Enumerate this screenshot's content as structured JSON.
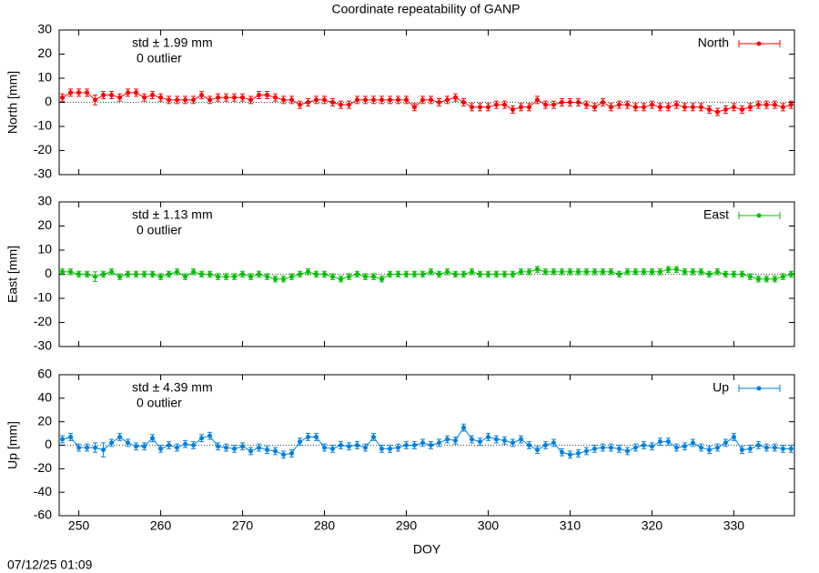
{
  "title": "Coordinate repeatability of GANP",
  "timestamp": "07/12/25 01:09",
  "chart_data": [
    {
      "type": "line",
      "ylabel": "North [mm]",
      "annotations": [
        "std ± 1.99 mm",
        "0 outlier"
      ],
      "xlim": [
        247.6,
        337.4
      ],
      "ylim": [
        -30,
        30
      ],
      "yticks": [
        -30,
        -20,
        -10,
        0,
        10,
        20,
        30
      ],
      "x": [
        248,
        249,
        250,
        251,
        252,
        253,
        254,
        255,
        256,
        257,
        258,
        259,
        260,
        261,
        262,
        263,
        264,
        265,
        266,
        267,
        268,
        269,
        270,
        271,
        272,
        273,
        274,
        275,
        276,
        277,
        278,
        279,
        280,
        281,
        282,
        283,
        284,
        285,
        286,
        287,
        288,
        289,
        290,
        291,
        292,
        293,
        294,
        295,
        296,
        297,
        298,
        299,
        300,
        301,
        302,
        303,
        304,
        305,
        306,
        307,
        308,
        309,
        310,
        311,
        312,
        313,
        314,
        315,
        316,
        317,
        318,
        319,
        320,
        321,
        322,
        323,
        324,
        325,
        326,
        327,
        328,
        329,
        330,
        331,
        332,
        333,
        334,
        335,
        336,
        337
      ],
      "series": [
        {
          "name": "North",
          "color": "#ff0000",
          "values": [
            2,
            4,
            4,
            4,
            1,
            3,
            3,
            2,
            4,
            4,
            2,
            3,
            2,
            1,
            1,
            1,
            1,
            3,
            1,
            2,
            2,
            2,
            2,
            1,
            3,
            3,
            2,
            1,
            1,
            -1,
            0,
            1,
            1,
            0,
            -1,
            -1,
            1,
            1,
            1,
            1,
            1,
            1,
            1,
            -2,
            1,
            1,
            0,
            1,
            2,
            0,
            -2,
            -2,
            -2,
            -1,
            -1,
            -3,
            -2,
            -2,
            1,
            -1,
            -1,
            0,
            0,
            0,
            -1,
            -2,
            0,
            -2,
            -1,
            -1,
            -2,
            -2,
            -1,
            -2,
            -2,
            -1,
            -2,
            -2,
            -2,
            -3,
            -4,
            -3,
            -2,
            -3,
            -2,
            -1,
            -1,
            -1,
            -2,
            -1
          ],
          "errors": [
            1.5,
            1.5,
            1.5,
            1.5,
            2,
            1.5,
            1.5,
            1.5,
            1.5,
            1.5,
            1.5,
            1.5,
            1.5,
            1.5,
            1.5,
            1.5,
            1.5,
            1.5,
            1.5,
            1.5,
            1.5,
            1.5,
            1.5,
            1.5,
            1.5,
            1.5,
            1.5,
            1.5,
            1.5,
            1.5,
            1.5,
            1.5,
            1.5,
            1.5,
            1.5,
            1.5,
            1.5,
            1.5,
            1.5,
            1.5,
            1.5,
            1.5,
            1.5,
            1.5,
            1.5,
            1.5,
            1.5,
            1.5,
            1.5,
            1.5,
            1.5,
            1.5,
            1.5,
            1.5,
            1.5,
            1.5,
            1.5,
            1.5,
            1.5,
            1.5,
            1.5,
            1.5,
            1.5,
            1.5,
            1.5,
            1.5,
            1.5,
            1.5,
            1.5,
            1.5,
            1.5,
            1.5,
            1.5,
            1.5,
            1.5,
            1.5,
            1.5,
            1.5,
            1.5,
            1.5,
            1.5,
            1.5,
            1.5,
            1.5,
            1.5,
            1.5,
            1.5,
            1.5,
            1.5,
            1.5
          ]
        }
      ]
    },
    {
      "type": "line",
      "ylabel": "East [mm]",
      "annotations": [
        "std ± 1.13 mm",
        "0 outlier"
      ],
      "xlim": [
        247.6,
        337.4
      ],
      "ylim": [
        -30,
        30
      ],
      "yticks": [
        -30,
        -20,
        -10,
        0,
        10,
        20,
        30
      ],
      "x": [
        248,
        249,
        250,
        251,
        252,
        253,
        254,
        255,
        256,
        257,
        258,
        259,
        260,
        261,
        262,
        263,
        264,
        265,
        266,
        267,
        268,
        269,
        270,
        271,
        272,
        273,
        274,
        275,
        276,
        277,
        278,
        279,
        280,
        281,
        282,
        283,
        284,
        285,
        286,
        287,
        288,
        289,
        290,
        291,
        292,
        293,
        294,
        295,
        296,
        297,
        298,
        299,
        300,
        301,
        302,
        303,
        304,
        305,
        306,
        307,
        308,
        309,
        310,
        311,
        312,
        313,
        314,
        315,
        316,
        317,
        318,
        319,
        320,
        321,
        322,
        323,
        324,
        325,
        326,
        327,
        328,
        329,
        330,
        331,
        332,
        333,
        334,
        335,
        336,
        337
      ],
      "series": [
        {
          "name": "East",
          "color": "#00c000",
          "values": [
            1,
            1,
            0,
            0,
            -1,
            0,
            1,
            -1,
            0,
            0,
            0,
            0,
            -1,
            0,
            1,
            -1,
            1,
            0,
            0,
            -1,
            -1,
            -1,
            0,
            -1,
            0,
            -1,
            -2,
            -2,
            -1,
            0,
            1,
            0,
            0,
            -1,
            -2,
            -1,
            0,
            -1,
            -1,
            -2,
            0,
            0,
            0,
            0,
            0,
            1,
            0,
            1,
            0,
            0,
            1,
            0,
            0,
            0,
            0,
            0,
            1,
            1,
            2,
            1,
            1,
            1,
            1,
            1,
            1,
            1,
            1,
            1,
            0,
            1,
            1,
            1,
            1,
            1,
            2,
            2,
            1,
            1,
            1,
            0,
            1,
            0,
            0,
            0,
            -1,
            -2,
            -2,
            -2,
            -1,
            0
          ],
          "errors": [
            1.2,
            1.2,
            1.2,
            1.2,
            2,
            1.2,
            1.2,
            1.2,
            1.2,
            1.2,
            1.2,
            1.2,
            1.2,
            1.2,
            1.2,
            1.2,
            1.2,
            1.2,
            1.2,
            1.2,
            1.2,
            1.2,
            1.2,
            1.2,
            1.2,
            1.2,
            1.2,
            1.2,
            1.2,
            1.2,
            1.2,
            1.2,
            1.2,
            1.2,
            1.2,
            1.2,
            1.2,
            1.2,
            1.2,
            1.2,
            1.2,
            1.2,
            1.2,
            1.2,
            1.2,
            1.2,
            1.2,
            1.2,
            1.2,
            1.2,
            1.2,
            1.2,
            1.2,
            1.2,
            1.2,
            1.2,
            1.2,
            1.2,
            1.2,
            1.2,
            1.2,
            1.2,
            1.2,
            1.2,
            1.2,
            1.2,
            1.2,
            1.2,
            1.2,
            1.2,
            1.2,
            1.2,
            1.2,
            1.2,
            1.2,
            1.2,
            1.2,
            1.2,
            1.2,
            1.2,
            1.2,
            1.2,
            1.2,
            1.2,
            1.2,
            1.2,
            1.2,
            1.2,
            1.2,
            1.2
          ]
        }
      ]
    },
    {
      "type": "line",
      "ylabel": "Up [mm]",
      "xlabel": "DOY",
      "annotations": [
        "std ± 4.39 mm",
        "0 outlier"
      ],
      "xlim": [
        247.6,
        337.4
      ],
      "xticks": [
        250,
        260,
        270,
        280,
        290,
        300,
        310,
        320,
        330
      ],
      "ylim": [
        -60,
        60
      ],
      "yticks": [
        -60,
        -40,
        -20,
        0,
        20,
        40,
        60
      ],
      "x": [
        248,
        249,
        250,
        251,
        252,
        253,
        254,
        255,
        256,
        257,
        258,
        259,
        260,
        261,
        262,
        263,
        264,
        265,
        266,
        267,
        268,
        269,
        270,
        271,
        272,
        273,
        274,
        275,
        276,
        277,
        278,
        279,
        280,
        281,
        282,
        283,
        284,
        285,
        286,
        287,
        288,
        289,
        290,
        291,
        292,
        293,
        294,
        295,
        296,
        297,
        298,
        299,
        300,
        301,
        302,
        303,
        304,
        305,
        306,
        307,
        308,
        309,
        310,
        311,
        312,
        313,
        314,
        315,
        316,
        317,
        318,
        319,
        320,
        321,
        322,
        323,
        324,
        325,
        326,
        327,
        328,
        329,
        330,
        331,
        332,
        333,
        334,
        335,
        336,
        337
      ],
      "series": [
        {
          "name": "Up",
          "color": "#0080e0",
          "values": [
            5,
            7,
            -2,
            -2,
            -2,
            -4,
            2,
            7,
            2,
            -1,
            -1,
            6,
            -3,
            0,
            -2,
            1,
            0,
            6,
            8,
            -1,
            -2,
            -3,
            -1,
            -5,
            -2,
            -4,
            -5,
            -8,
            -7,
            3,
            7,
            7,
            -2,
            -3,
            0,
            -1,
            0,
            -2,
            7,
            -3,
            -3,
            -2,
            0,
            0,
            2,
            0,
            2,
            5,
            4,
            15,
            5,
            3,
            7,
            5,
            4,
            2,
            5,
            0,
            -4,
            0,
            2,
            -6,
            -8,
            -7,
            -5,
            -3,
            -2,
            -2,
            -3,
            -5,
            -2,
            0,
            -1,
            3,
            3,
            -2,
            -1,
            2,
            -2,
            -4,
            -2,
            2,
            7,
            -4,
            -3,
            0,
            -2,
            -2,
            -3,
            -3
          ],
          "errors": [
            3,
            3,
            3,
            3,
            4,
            6,
            3,
            3,
            3,
            3,
            3,
            3,
            3,
            3,
            3,
            3,
            3,
            3,
            3,
            3,
            3,
            3,
            3,
            3,
            3,
            3,
            3,
            3,
            3,
            3,
            3,
            3,
            3,
            3,
            3,
            3,
            3,
            3,
            3,
            3,
            3,
            3,
            3,
            3,
            3,
            3,
            3,
            3,
            3,
            3,
            3,
            3,
            3,
            3,
            3,
            3,
            3,
            3,
            3,
            3,
            3,
            3,
            3,
            3,
            3,
            3,
            3,
            3,
            3,
            3,
            3,
            3,
            3,
            3,
            3,
            3,
            3,
            3,
            3,
            3,
            3,
            3,
            3,
            3,
            3,
            3,
            3,
            3,
            3,
            3
          ]
        }
      ]
    }
  ]
}
